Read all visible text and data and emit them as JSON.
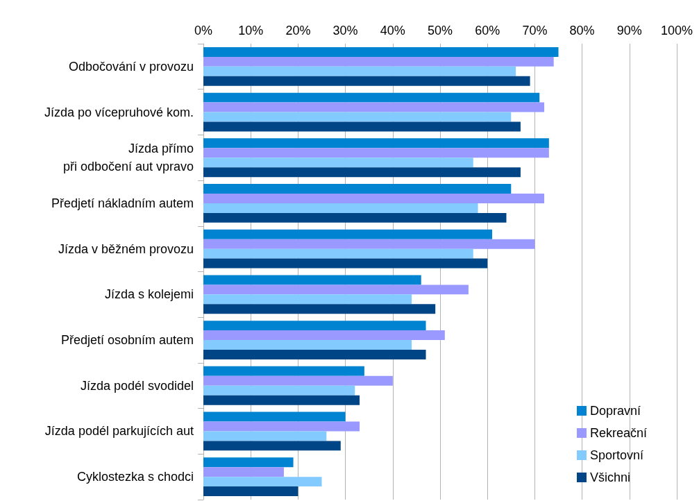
{
  "chart_data": {
    "type": "bar",
    "orientation": "horizontal",
    "categories": [
      "Odbočování v provozu",
      "Jízda po vícepruhové kom.",
      "Jízda přímo\npři odbočení aut vpravo",
      "Předjetí nákladním autem",
      "Jízda v běžném provozu",
      "Jízda s kolejemi",
      "Předjetí osobním autem",
      "Jízda podél svodidel",
      "Jízda podél parkujících aut",
      "Cyklostezka s chodci"
    ],
    "series": [
      {
        "name": "Dopravní",
        "color": "#0084d1",
        "values": [
          75,
          71,
          73,
          65,
          61,
          46,
          47,
          34,
          30,
          19
        ]
      },
      {
        "name": "Rekreační",
        "color": "#9999ff",
        "values": [
          74,
          72,
          73,
          72,
          70,
          56,
          51,
          40,
          33,
          17
        ]
      },
      {
        "name": "Sportovní",
        "color": "#83caff",
        "values": [
          66,
          65,
          57,
          58,
          57,
          44,
          44,
          32,
          26,
          25
        ]
      },
      {
        "name": "Všichni",
        "color": "#004586",
        "values": [
          69,
          67,
          67,
          64,
          60,
          49,
          47,
          33,
          29,
          20
        ]
      }
    ],
    "xlim": [
      0,
      100
    ],
    "xticks": [
      {
        "value": 0,
        "label": "0%"
      },
      {
        "value": 10,
        "label": "10%"
      },
      {
        "value": 20,
        "label": "20%"
      },
      {
        "value": 30,
        "label": "30%"
      },
      {
        "value": 40,
        "label": "40%"
      },
      {
        "value": 50,
        "label": "50%"
      },
      {
        "value": 60,
        "label": "60%"
      },
      {
        "value": 70,
        "label": "70%"
      },
      {
        "value": 80,
        "label": "80%"
      },
      {
        "value": 90,
        "label": "90%"
      },
      {
        "value": 100,
        "label": "100%"
      }
    ],
    "grid": "x",
    "legend": "bottom right"
  }
}
